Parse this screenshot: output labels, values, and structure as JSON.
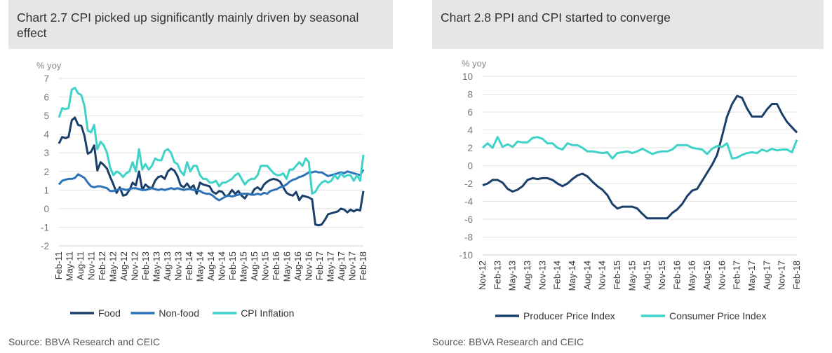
{
  "left": {
    "title": "Chart 2.7 CPI  picked up significantly mainly driven by seasonal effect",
    "source": "Source: BBVA Research and CEIC"
  },
  "right": {
    "title": "Chart 2.8 PPI  and CPI started to converge",
    "source": "Source: BBVA Research and CEIC"
  },
  "chart_data": [
    {
      "type": "line",
      "title": "Chart 2.7 CPI  picked up significantly mainly driven by seasonal effect",
      "ylabel": "% yoy",
      "xlabel": "",
      "ylim": [
        -2,
        7
      ],
      "yticks": [
        -2,
        -1,
        0,
        1,
        2,
        3,
        4,
        5,
        6,
        7
      ],
      "grid": "horizontal",
      "legend": "bottom",
      "x_start": "Feb-11",
      "x_tick_labels": [
        "Feb-11",
        "May-11",
        "Aug-11",
        "Nov-11",
        "Feb-12",
        "May-12",
        "Aug-12",
        "Nov-12",
        "Feb-13",
        "May-13",
        "Aug-13",
        "Nov-13",
        "Feb-14",
        "May-14",
        "Aug-14",
        "Nov-14",
        "Feb-15",
        "May-15",
        "Aug-15",
        "Nov-15",
        "Feb-16",
        "May-16",
        "Aug-16",
        "Nov-16",
        "Feb-17",
        "May-17",
        "Aug-17",
        "Nov-17",
        "Feb-18"
      ],
      "series": [
        {
          "name": "Food",
          "color": "#1b3f6b",
          "values": [
            3.5,
            3.85,
            3.8,
            3.85,
            4.75,
            4.9,
            4.5,
            4.45,
            3.9,
            2.95,
            3.05,
            3.4,
            2.05,
            2.5,
            2.35,
            2.15,
            1.7,
            1.3,
            0.85,
            1.15,
            0.7,
            0.75,
            1.0,
            1.4,
            1.25,
            2.0,
            1.0,
            1.3,
            1.15,
            1.1,
            1.5,
            1.7,
            1.75,
            1.6,
            2.0,
            2.15,
            2.05,
            1.75,
            1.25,
            1.15,
            1.35,
            1.1,
            1.25,
            0.8,
            1.4,
            1.3,
            1.25,
            1.2,
            0.9,
            0.8,
            0.95,
            0.9,
            0.65,
            0.75,
            1.0,
            0.8,
            0.95,
            0.7,
            0.55,
            0.8,
            0.75,
            1.05,
            1.15,
            1.0,
            1.3,
            1.45,
            1.55,
            1.6,
            1.55,
            1.45,
            1.15,
            0.85,
            0.75,
            0.7,
            0.9,
            0.45,
            0.7,
            0.65,
            0.6,
            0.5,
            -0.85,
            -0.9,
            -0.85,
            -0.6,
            -0.3,
            -0.25,
            -0.2,
            -0.15,
            0.0,
            -0.05,
            -0.2,
            -0.05,
            -0.15,
            -0.05,
            -0.1,
            0.95
          ]
        },
        {
          "name": "Non-food",
          "color": "#2e73b8",
          "values": [
            1.3,
            1.5,
            1.55,
            1.6,
            1.6,
            1.65,
            1.85,
            1.75,
            1.65,
            1.4,
            1.2,
            1.15,
            1.2,
            1.2,
            1.15,
            1.1,
            0.95,
            0.95,
            1.0,
            1.05,
            1.05,
            1.0,
            1.05,
            1.1,
            1.1,
            1.05,
            1.0,
            1.0,
            1.05,
            1.1,
            1.05,
            1.0,
            1.05,
            1.0,
            1.05,
            1.1,
            1.05,
            1.1,
            1.05,
            1.0,
            1.05,
            1.05,
            1.0,
            1.0,
            0.95,
            0.85,
            0.8,
            0.8,
            0.7,
            0.55,
            0.45,
            0.55,
            0.65,
            0.7,
            0.65,
            0.7,
            0.75,
            0.8,
            0.8,
            0.8,
            0.75,
            0.75,
            0.8,
            0.75,
            0.85,
            0.8,
            0.95,
            1.0,
            1.05,
            1.15,
            1.2,
            1.3,
            1.45,
            1.55,
            1.6,
            1.7,
            1.75,
            1.85,
            1.95,
            1.95,
            2.0,
            1.95,
            1.95,
            1.85,
            1.75,
            1.8,
            1.85,
            1.9,
            1.95,
            1.9,
            2.0,
            1.95,
            1.9,
            1.85,
            1.8,
            2.1
          ]
        },
        {
          "name": "CPI Inflation",
          "color": "#3fd3c8",
          "values": [
            4.9,
            5.4,
            5.35,
            5.4,
            6.4,
            6.5,
            6.2,
            6.1,
            5.5,
            4.2,
            4.1,
            4.5,
            3.2,
            3.6,
            3.4,
            3.0,
            2.2,
            1.8,
            2.0,
            1.9,
            1.7,
            1.9,
            2.0,
            2.5,
            2.0,
            3.2,
            2.1,
            2.4,
            2.1,
            2.3,
            2.7,
            2.6,
            2.6,
            3.1,
            3.2,
            3.0,
            2.5,
            2.4,
            2.0,
            1.8,
            2.5,
            2.0,
            2.3,
            2.3,
            1.8,
            1.6,
            1.6,
            1.4,
            1.4,
            1.5,
            1.2,
            1.4,
            1.4,
            1.5,
            1.6,
            1.8,
            1.9,
            1.6,
            1.3,
            1.5,
            1.6,
            1.6,
            1.8,
            2.3,
            2.3,
            2.3,
            2.1,
            1.9,
            1.8,
            1.8,
            1.9,
            1.6,
            2.1,
            2.1,
            2.3,
            2.5,
            2.3,
            2.7,
            2.5,
            0.8,
            0.9,
            1.2,
            1.4,
            1.5,
            1.4,
            1.5,
            1.8,
            1.6,
            1.9,
            1.7,
            1.8,
            1.8,
            1.5,
            1.8,
            1.5,
            2.9
          ]
        }
      ]
    },
    {
      "type": "line",
      "title": "Chart 2.8 PPI  and CPI started to converge",
      "ylabel": "% yoy",
      "xlabel": "",
      "ylim": [
        -10,
        10
      ],
      "yticks": [
        -10,
        -8,
        -6,
        -4,
        -2,
        0,
        2,
        4,
        6,
        8,
        10
      ],
      "grid": "horizontal",
      "legend": "bottom",
      "x_start": "Nov-12",
      "x_tick_labels": [
        "Nov-12",
        "Feb-13",
        "May-13",
        "Aug-13",
        "Nov-13",
        "Feb-14",
        "May-14",
        "Aug-14",
        "Nov-14",
        "Feb-15",
        "May-15",
        "Aug-15",
        "Nov-15",
        "Feb-16",
        "May-16",
        "Aug-16",
        "Nov-16",
        "Feb-17",
        "May-17",
        "Aug-17",
        "Nov-17",
        "Feb-18"
      ],
      "series": [
        {
          "name": "Producer Price Index",
          "color": "#1b3f6b",
          "values": [
            -2.2,
            -2.0,
            -1.6,
            -1.6,
            -1.9,
            -2.6,
            -2.9,
            -2.7,
            -2.3,
            -1.6,
            -1.4,
            -1.5,
            -1.4,
            -1.4,
            -1.6,
            -2.0,
            -2.3,
            -2.0,
            -1.5,
            -1.1,
            -0.9,
            -1.2,
            -1.8,
            -2.3,
            -2.7,
            -3.3,
            -4.3,
            -4.8,
            -4.6,
            -4.6,
            -4.6,
            -4.8,
            -5.4,
            -5.9,
            -5.9,
            -5.9,
            -5.9,
            -5.9,
            -5.3,
            -4.9,
            -4.3,
            -3.4,
            -2.8,
            -2.6,
            -1.7,
            -0.8,
            0.1,
            1.2,
            3.3,
            5.5,
            6.9,
            7.8,
            7.6,
            6.4,
            5.5,
            5.5,
            5.5,
            6.3,
            6.9,
            6.9,
            5.8,
            4.9,
            4.3,
            3.7
          ]
        },
        {
          "name": "Consumer Price Index",
          "color": "#3fd3c8",
          "values": [
            2.0,
            2.5,
            2.0,
            3.2,
            2.1,
            2.4,
            2.1,
            2.7,
            2.6,
            2.6,
            3.1,
            3.2,
            3.0,
            2.5,
            2.5,
            2.0,
            1.8,
            2.5,
            2.3,
            2.3,
            2.0,
            1.6,
            1.6,
            1.5,
            1.4,
            1.5,
            0.8,
            1.4,
            1.5,
            1.6,
            1.4,
            1.6,
            1.9,
            1.6,
            1.3,
            1.5,
            1.6,
            1.6,
            1.8,
            2.3,
            2.3,
            2.3,
            2.0,
            1.9,
            1.8,
            1.3,
            1.9,
            2.2,
            2.1,
            2.5,
            0.8,
            0.9,
            1.2,
            1.4,
            1.5,
            1.4,
            1.8,
            1.6,
            1.9,
            1.7,
            1.8,
            1.8,
            1.5,
            2.9
          ]
        }
      ]
    }
  ]
}
